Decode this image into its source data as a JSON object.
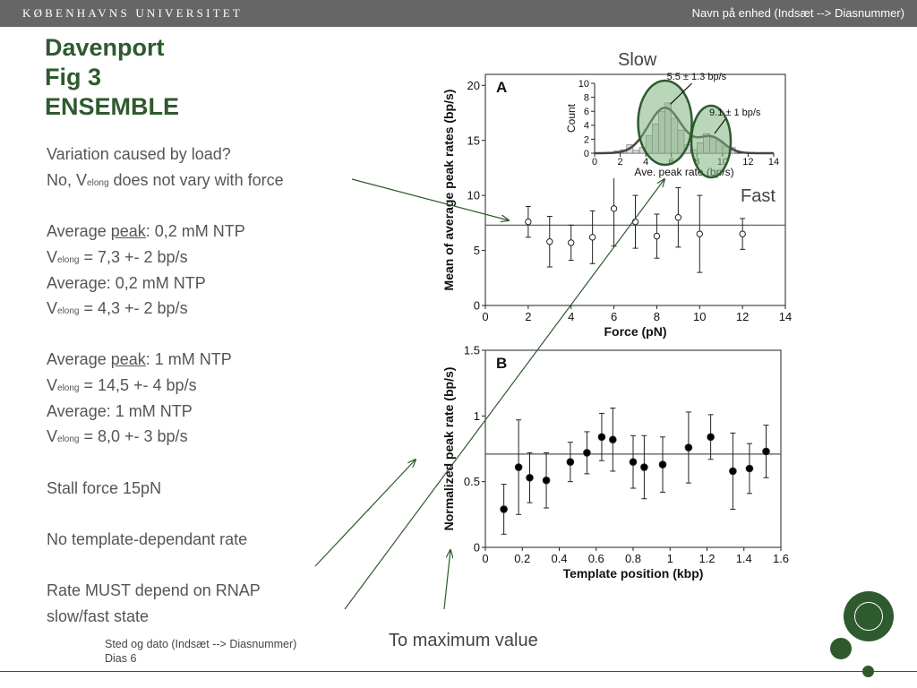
{
  "header": {
    "university": "KØBENHAVNS UNIVERSITET",
    "unit_text": "Navn på enhed  (Indsæt --> Diasnummer)"
  },
  "title": {
    "line1": "Davenport",
    "line2": "Fig 3",
    "line3": "ENSEMBLE"
  },
  "body": {
    "l1": "Variation caused by load?",
    "l2_pre": "No, V",
    "l2_sub": "elong",
    "l2_post": " does not vary with force",
    "l3_pre": "Average ",
    "l3_ul": "peak",
    "l3_post": ": 0,2 mM NTP",
    "l4_pre": "V",
    "l4_sub": "elong",
    "l4_post": " = 7,3 +- 2 bp/s",
    "l5": "Average: 0,2 mM NTP",
    "l6_pre": "V",
    "l6_sub": "elong",
    "l6_post": " = 4,3 +- 2 bp/s",
    "l7_pre": "Average ",
    "l7_ul": "peak",
    "l7_post": ": 1 mM NTP",
    "l8_pre": "V",
    "l8_sub": "elong",
    "l8_post": " = 14,5 +- 4 bp/s",
    "l9": "Average: 1 mM NTP",
    "l10_pre": "V",
    "l10_sub": "elong",
    "l10_post": " = 8,0 +- 3 bp/s",
    "l11": "Stall force 15pN",
    "l12": "No template-dependant rate",
    "l13": "Rate MUST depend on RNAP",
    "l14": "slow/fast state"
  },
  "annotations": {
    "slow": "Slow",
    "fast": "Fast",
    "to_max": "To maximum value"
  },
  "footer": {
    "line1": "Sted og dato  (Indsæt --> Diasnummer)",
    "line2": "Dias 6"
  },
  "colors": {
    "brand_green": "#2e5a2e",
    "topbar": "#666666",
    "ellipse_fill": "#7fb57f"
  },
  "chart_data": [
    {
      "panel": "A",
      "type": "scatter",
      "xlabel": "Force (pN)",
      "ylabel": "Mean of average peak rates (bp/s)",
      "xlim": [
        0,
        14
      ],
      "ylim": [
        0,
        21
      ],
      "xticks": [
        "0",
        "2",
        "4",
        "6",
        "8",
        "10",
        "12",
        "14"
      ],
      "yticks": [
        "0",
        "5",
        "10",
        "15",
        "20"
      ],
      "marker": "open-circle",
      "mean_line": 7.3,
      "points": [
        {
          "x": 2,
          "y": 7.6,
          "err": 1.4
        },
        {
          "x": 3,
          "y": 5.8,
          "err": 2.3
        },
        {
          "x": 4,
          "y": 5.7,
          "err": 1.6
        },
        {
          "x": 5,
          "y": 6.2,
          "err": 2.4
        },
        {
          "x": 6,
          "y": 8.8,
          "err": 3.4
        },
        {
          "x": 7,
          "y": 7.6,
          "err": 2.4
        },
        {
          "x": 8,
          "y": 6.3,
          "err": 2.0
        },
        {
          "x": 9,
          "y": 8.0,
          "err": 2.7
        },
        {
          "x": 10,
          "y": 6.5,
          "err": 3.5
        },
        {
          "x": 12,
          "y": 6.5,
          "err": 1.4
        }
      ]
    },
    {
      "panel": "A-inset",
      "type": "bar",
      "xlabel": "Ave. peak rate (bp/s)",
      "ylabel": "Count",
      "xlim": [
        0,
        14
      ],
      "ylim": [
        0,
        10
      ],
      "xticks": [
        "0",
        "2",
        "4",
        "6",
        "8",
        "10",
        "12",
        "14"
      ],
      "yticks": [
        "0",
        "2",
        "4",
        "6",
        "8",
        "10"
      ],
      "bin_width": 0.5,
      "bins": [
        {
          "x": 1.75,
          "y": 0.3
        },
        {
          "x": 2.25,
          "y": 0.5
        },
        {
          "x": 2.75,
          "y": 1.2
        },
        {
          "x": 3.25,
          "y": 0.4
        },
        {
          "x": 3.75,
          "y": 0.8
        },
        {
          "x": 4.25,
          "y": 2.5
        },
        {
          "x": 4.75,
          "y": 4.2
        },
        {
          "x": 5.25,
          "y": 6.0
        },
        {
          "x": 5.75,
          "y": 7.2
        },
        {
          "x": 6.25,
          "y": 5.0
        },
        {
          "x": 6.75,
          "y": 3.3
        },
        {
          "x": 7.25,
          "y": 1.2
        },
        {
          "x": 7.75,
          "y": 0.5
        },
        {
          "x": 8.25,
          "y": 1.5
        },
        {
          "x": 8.75,
          "y": 2.8
        },
        {
          "x": 9.25,
          "y": 2.2
        },
        {
          "x": 9.75,
          "y": 1.8
        },
        {
          "x": 10.25,
          "y": 1.0
        },
        {
          "x": 10.75,
          "y": 0.8
        }
      ],
      "fit_peaks": [
        {
          "mean": 5.5,
          "sd": 1.3,
          "amp": 6.5,
          "label": "5.5 ± 1.3 bp/s"
        },
        {
          "mean": 9.1,
          "sd": 1.0,
          "amp": 2.3,
          "label": "9.1 ± 1 bp/s"
        }
      ]
    },
    {
      "panel": "B",
      "type": "scatter",
      "xlabel": "Template position (kbp)",
      "ylabel": "Normalized peak rate (bp/s)",
      "xlim": [
        0,
        1.6
      ],
      "ylim": [
        0,
        1.5
      ],
      "xticks": [
        "0",
        "0.2",
        "0.4",
        "0.6",
        "0.8",
        "1",
        "1.2",
        "1.4",
        "1.6"
      ],
      "yticks": [
        "0",
        "0.5",
        "1",
        "1.5"
      ],
      "marker": "filled-circle",
      "mean_line": 0.71,
      "points": [
        {
          "x": 0.1,
          "y": 0.29,
          "err": 0.19
        },
        {
          "x": 0.18,
          "y": 0.61,
          "err": 0.36
        },
        {
          "x": 0.24,
          "y": 0.53,
          "err": 0.19
        },
        {
          "x": 0.33,
          "y": 0.51,
          "err": 0.21
        },
        {
          "x": 0.46,
          "y": 0.65,
          "err": 0.15
        },
        {
          "x": 0.55,
          "y": 0.72,
          "err": 0.16
        },
        {
          "x": 0.63,
          "y": 0.84,
          "err": 0.18
        },
        {
          "x": 0.69,
          "y": 0.82,
          "err": 0.24
        },
        {
          "x": 0.8,
          "y": 0.65,
          "err": 0.2
        },
        {
          "x": 0.86,
          "y": 0.61,
          "err": 0.24
        },
        {
          "x": 0.96,
          "y": 0.63,
          "err": 0.21
        },
        {
          "x": 1.1,
          "y": 0.76,
          "err": 0.27
        },
        {
          "x": 1.22,
          "y": 0.84,
          "err": 0.17
        },
        {
          "x": 1.34,
          "y": 0.58,
          "err": 0.29
        },
        {
          "x": 1.43,
          "y": 0.6,
          "err": 0.19
        },
        {
          "x": 1.52,
          "y": 0.73,
          "err": 0.2
        }
      ]
    }
  ]
}
